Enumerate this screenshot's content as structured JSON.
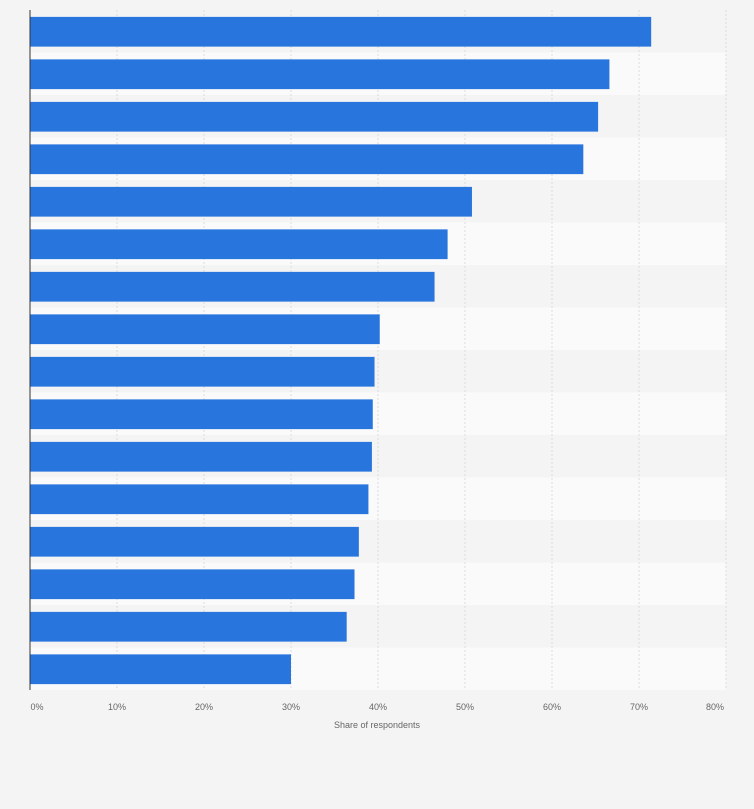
{
  "chart_data": {
    "type": "bar",
    "orientation": "horizontal",
    "values": [
      71.4,
      66.6,
      65.3,
      63.6,
      50.8,
      48.0,
      46.5,
      40.2,
      39.6,
      39.4,
      39.3,
      38.9,
      37.8,
      37.3,
      36.4,
      30.0
    ],
    "xlabel": "Share of respondents",
    "xlim": [
      0,
      80
    ],
    "xticks": [
      0,
      10,
      20,
      30,
      40,
      50,
      60,
      70,
      80
    ],
    "xtick_labels": [
      "0%",
      "10%",
      "20%",
      "30%",
      "40%",
      "50%",
      "60%",
      "70%",
      "80%"
    ],
    "grid": true,
    "bar_color": "#2876dd"
  }
}
